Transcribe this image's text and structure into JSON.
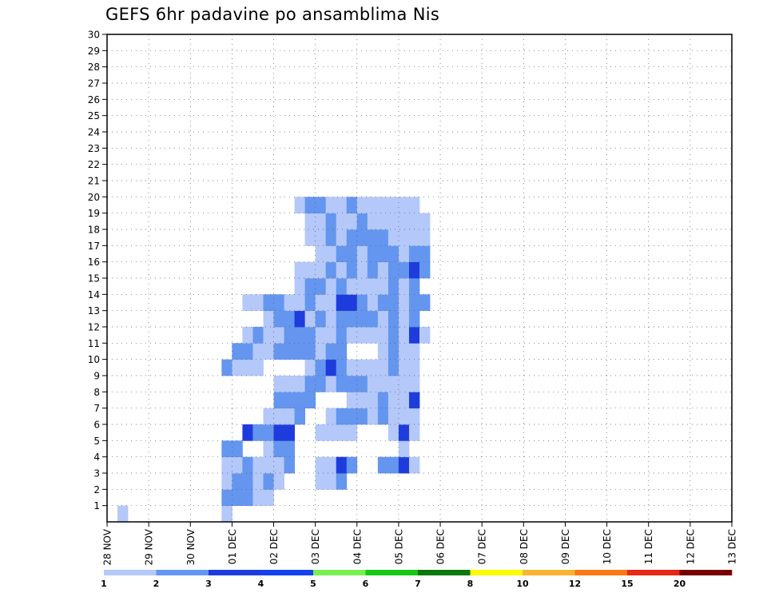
{
  "chart_data": {
    "type": "heatmap",
    "title": "GEFS 6hr padavine po ansamblima Nis",
    "xlabel": "",
    "ylabel": "",
    "x_ticks": [
      "28 NOV",
      "29 NOV",
      "30 NOV",
      "01 DEC",
      "02 DEC",
      "03 DEC",
      "04 DEC",
      "05 DEC",
      "06 DEC",
      "07 DEC",
      "08 DEC",
      "09 DEC",
      "10 DEC",
      "11 DEC",
      "12 DEC",
      "13 DEC"
    ],
    "y_ticks": [
      1,
      2,
      3,
      4,
      5,
      6,
      7,
      8,
      9,
      10,
      11,
      12,
      13,
      14,
      15,
      16,
      17,
      18,
      19,
      20,
      21,
      22,
      23,
      24,
      25,
      26,
      27,
      28,
      29,
      30
    ],
    "x_unit": "6-hour step from 28 NOV 00Z",
    "xlim": [
      0,
      60
    ],
    "ylim": [
      0,
      30
    ],
    "grid": true,
    "colorbar": {
      "levels": [
        "1",
        "2",
        "3",
        "4",
        "5",
        "6",
        "7",
        "8",
        "10",
        "12",
        "15",
        "20"
      ],
      "colors": [
        "#b4c8fa",
        "#6496f0",
        "#1e3cdc",
        "#1440f0",
        "#78f050",
        "#14c814",
        "#0a780a",
        "#fafa00",
        "#fab432",
        "#fa7814",
        "#e62814",
        "#780000"
      ]
    },
    "cells": [
      {
        "x": 2,
        "y": 1,
        "c": 0
      },
      {
        "x": 12,
        "y": 1,
        "c": 0
      },
      {
        "x": 12,
        "y": 2,
        "c": 1
      },
      {
        "x": 13,
        "y": 2,
        "c": 1
      },
      {
        "x": 14,
        "y": 2,
        "c": 1
      },
      {
        "x": 15,
        "y": 2,
        "c": 0
      },
      {
        "x": 16,
        "y": 2,
        "c": 0
      },
      {
        "x": 12,
        "y": 3,
        "c": 0
      },
      {
        "x": 13,
        "y": 3,
        "c": 1
      },
      {
        "x": 14,
        "y": 3,
        "c": 1
      },
      {
        "x": 15,
        "y": 3,
        "c": 0
      },
      {
        "x": 16,
        "y": 3,
        "c": 1
      },
      {
        "x": 17,
        "y": 3,
        "c": 0
      },
      {
        "x": 21,
        "y": 3,
        "c": 0
      },
      {
        "x": 22,
        "y": 3,
        "c": 0
      },
      {
        "x": 23,
        "y": 3,
        "c": 1
      },
      {
        "x": 12,
        "y": 4,
        "c": 0
      },
      {
        "x": 13,
        "y": 4,
        "c": 0
      },
      {
        "x": 14,
        "y": 4,
        "c": 1
      },
      {
        "x": 15,
        "y": 4,
        "c": 0
      },
      {
        "x": 16,
        "y": 4,
        "c": 0
      },
      {
        "x": 17,
        "y": 4,
        "c": 0
      },
      {
        "x": 18,
        "y": 4,
        "c": 1
      },
      {
        "x": 21,
        "y": 4,
        "c": 0
      },
      {
        "x": 22,
        "y": 4,
        "c": 0
      },
      {
        "x": 23,
        "y": 4,
        "c": 2
      },
      {
        "x": 24,
        "y": 4,
        "c": 1
      },
      {
        "x": 27,
        "y": 4,
        "c": 1
      },
      {
        "x": 28,
        "y": 4,
        "c": 1
      },
      {
        "x": 29,
        "y": 4,
        "c": 2
      },
      {
        "x": 30,
        "y": 4,
        "c": 0
      },
      {
        "x": 12,
        "y": 5,
        "c": 1
      },
      {
        "x": 13,
        "y": 5,
        "c": 1
      },
      {
        "x": 16,
        "y": 5,
        "c": 0
      },
      {
        "x": 17,
        "y": 5,
        "c": 1
      },
      {
        "x": 18,
        "y": 5,
        "c": 1
      },
      {
        "x": 29,
        "y": 5,
        "c": 0
      },
      {
        "x": 14,
        "y": 6,
        "c": 2
      },
      {
        "x": 15,
        "y": 6,
        "c": 1
      },
      {
        "x": 16,
        "y": 6,
        "c": 1
      },
      {
        "x": 17,
        "y": 6,
        "c": 2
      },
      {
        "x": 18,
        "y": 6,
        "c": 2
      },
      {
        "x": 21,
        "y": 6,
        "c": 0
      },
      {
        "x": 22,
        "y": 6,
        "c": 0
      },
      {
        "x": 23,
        "y": 6,
        "c": 0
      },
      {
        "x": 24,
        "y": 6,
        "c": 0
      },
      {
        "x": 28,
        "y": 6,
        "c": 0
      },
      {
        "x": 29,
        "y": 6,
        "c": 2
      },
      {
        "x": 30,
        "y": 6,
        "c": 0
      },
      {
        "x": 16,
        "y": 7,
        "c": 0
      },
      {
        "x": 17,
        "y": 7,
        "c": 0
      },
      {
        "x": 18,
        "y": 7,
        "c": 0
      },
      {
        "x": 19,
        "y": 7,
        "c": 1
      },
      {
        "x": 22,
        "y": 7,
        "c": 0
      },
      {
        "x": 23,
        "y": 7,
        "c": 1
      },
      {
        "x": 24,
        "y": 7,
        "c": 1
      },
      {
        "x": 25,
        "y": 7,
        "c": 1
      },
      {
        "x": 26,
        "y": 7,
        "c": 0
      },
      {
        "x": 27,
        "y": 7,
        "c": 1
      },
      {
        "x": 28,
        "y": 7,
        "c": 0
      },
      {
        "x": 29,
        "y": 7,
        "c": 0
      },
      {
        "x": 30,
        "y": 7,
        "c": 0
      },
      {
        "x": 17,
        "y": 8,
        "c": 1
      },
      {
        "x": 18,
        "y": 8,
        "c": 1
      },
      {
        "x": 19,
        "y": 8,
        "c": 1
      },
      {
        "x": 20,
        "y": 8,
        "c": 1
      },
      {
        "x": 24,
        "y": 8,
        "c": 0
      },
      {
        "x": 25,
        "y": 8,
        "c": 0
      },
      {
        "x": 26,
        "y": 8,
        "c": 0
      },
      {
        "x": 27,
        "y": 8,
        "c": 1
      },
      {
        "x": 28,
        "y": 8,
        "c": 0
      },
      {
        "x": 29,
        "y": 8,
        "c": 0
      },
      {
        "x": 30,
        "y": 8,
        "c": 2
      },
      {
        "x": 17,
        "y": 9,
        "c": 0
      },
      {
        "x": 18,
        "y": 9,
        "c": 0
      },
      {
        "x": 19,
        "y": 9,
        "c": 0
      },
      {
        "x": 20,
        "y": 9,
        "c": 1
      },
      {
        "x": 21,
        "y": 9,
        "c": 1
      },
      {
        "x": 22,
        "y": 9,
        "c": 0
      },
      {
        "x": 23,
        "y": 9,
        "c": 1
      },
      {
        "x": 24,
        "y": 9,
        "c": 1
      },
      {
        "x": 25,
        "y": 9,
        "c": 1
      },
      {
        "x": 26,
        "y": 9,
        "c": 0
      },
      {
        "x": 27,
        "y": 9,
        "c": 0
      },
      {
        "x": 28,
        "y": 9,
        "c": 0
      },
      {
        "x": 29,
        "y": 9,
        "c": 0
      },
      {
        "x": 30,
        "y": 9,
        "c": 0
      },
      {
        "x": 12,
        "y": 10,
        "c": 1
      },
      {
        "x": 13,
        "y": 10,
        "c": 0
      },
      {
        "x": 14,
        "y": 10,
        "c": 0
      },
      {
        "x": 15,
        "y": 10,
        "c": 0
      },
      {
        "x": 20,
        "y": 10,
        "c": 0
      },
      {
        "x": 21,
        "y": 10,
        "c": 1
      },
      {
        "x": 22,
        "y": 10,
        "c": 2
      },
      {
        "x": 23,
        "y": 10,
        "c": 1
      },
      {
        "x": 24,
        "y": 10,
        "c": 0
      },
      {
        "x": 25,
        "y": 10,
        "c": 0
      },
      {
        "x": 26,
        "y": 10,
        "c": 0
      },
      {
        "x": 27,
        "y": 10,
        "c": 0
      },
      {
        "x": 28,
        "y": 10,
        "c": 1
      },
      {
        "x": 29,
        "y": 10,
        "c": 0
      },
      {
        "x": 30,
        "y": 10,
        "c": 0
      },
      {
        "x": 13,
        "y": 11,
        "c": 1
      },
      {
        "x": 14,
        "y": 11,
        "c": 1
      },
      {
        "x": 15,
        "y": 11,
        "c": 0
      },
      {
        "x": 16,
        "y": 11,
        "c": 0
      },
      {
        "x": 17,
        "y": 11,
        "c": 1
      },
      {
        "x": 18,
        "y": 11,
        "c": 1
      },
      {
        "x": 19,
        "y": 11,
        "c": 1
      },
      {
        "x": 20,
        "y": 11,
        "c": 1
      },
      {
        "x": 21,
        "y": 11,
        "c": 0
      },
      {
        "x": 22,
        "y": 11,
        "c": 1
      },
      {
        "x": 23,
        "y": 11,
        "c": 1
      },
      {
        "x": 27,
        "y": 11,
        "c": 0
      },
      {
        "x": 28,
        "y": 11,
        "c": 1
      },
      {
        "x": 29,
        "y": 11,
        "c": 0
      },
      {
        "x": 30,
        "y": 11,
        "c": 0
      },
      {
        "x": 14,
        "y": 12,
        "c": 0
      },
      {
        "x": 15,
        "y": 12,
        "c": 1
      },
      {
        "x": 16,
        "y": 12,
        "c": 0
      },
      {
        "x": 17,
        "y": 12,
        "c": 0
      },
      {
        "x": 18,
        "y": 12,
        "c": 1
      },
      {
        "x": 19,
        "y": 12,
        "c": 1
      },
      {
        "x": 20,
        "y": 12,
        "c": 1
      },
      {
        "x": 21,
        "y": 12,
        "c": 0
      },
      {
        "x": 22,
        "y": 12,
        "c": 0
      },
      {
        "x": 23,
        "y": 12,
        "c": 1
      },
      {
        "x": 24,
        "y": 12,
        "c": 0
      },
      {
        "x": 25,
        "y": 12,
        "c": 0
      },
      {
        "x": 26,
        "y": 12,
        "c": 0
      },
      {
        "x": 27,
        "y": 12,
        "c": 0
      },
      {
        "x": 28,
        "y": 12,
        "c": 1
      },
      {
        "x": 29,
        "y": 12,
        "c": 0
      },
      {
        "x": 30,
        "y": 12,
        "c": 2
      },
      {
        "x": 31,
        "y": 12,
        "c": 0
      },
      {
        "x": 16,
        "y": 13,
        "c": 0
      },
      {
        "x": 17,
        "y": 13,
        "c": 1
      },
      {
        "x": 18,
        "y": 13,
        "c": 1
      },
      {
        "x": 19,
        "y": 13,
        "c": 2
      },
      {
        "x": 20,
        "y": 13,
        "c": 0
      },
      {
        "x": 21,
        "y": 13,
        "c": 1
      },
      {
        "x": 22,
        "y": 13,
        "c": 0
      },
      {
        "x": 23,
        "y": 13,
        "c": 1
      },
      {
        "x": 24,
        "y": 13,
        "c": 1
      },
      {
        "x": 25,
        "y": 13,
        "c": 1
      },
      {
        "x": 26,
        "y": 13,
        "c": 1
      },
      {
        "x": 27,
        "y": 13,
        "c": 0
      },
      {
        "x": 28,
        "y": 13,
        "c": 1
      },
      {
        "x": 29,
        "y": 13,
        "c": 0
      },
      {
        "x": 30,
        "y": 13,
        "c": 1
      },
      {
        "x": 14,
        "y": 14,
        "c": 0
      },
      {
        "x": 15,
        "y": 14,
        "c": 0
      },
      {
        "x": 16,
        "y": 14,
        "c": 1
      },
      {
        "x": 17,
        "y": 14,
        "c": 1
      },
      {
        "x": 18,
        "y": 14,
        "c": 0
      },
      {
        "x": 19,
        "y": 14,
        "c": 0
      },
      {
        "x": 20,
        "y": 14,
        "c": 1
      },
      {
        "x": 21,
        "y": 14,
        "c": 0
      },
      {
        "x": 22,
        "y": 14,
        "c": 0
      },
      {
        "x": 23,
        "y": 14,
        "c": 2
      },
      {
        "x": 24,
        "y": 14,
        "c": 2
      },
      {
        "x": 25,
        "y": 14,
        "c": 1
      },
      {
        "x": 26,
        "y": 14,
        "c": 0
      },
      {
        "x": 27,
        "y": 14,
        "c": 1
      },
      {
        "x": 28,
        "y": 14,
        "c": 1
      },
      {
        "x": 29,
        "y": 14,
        "c": 0
      },
      {
        "x": 30,
        "y": 14,
        "c": 1
      },
      {
        "x": 31,
        "y": 14,
        "c": 1
      },
      {
        "x": 19,
        "y": 15,
        "c": 0
      },
      {
        "x": 20,
        "y": 15,
        "c": 1
      },
      {
        "x": 21,
        "y": 15,
        "c": 1
      },
      {
        "x": 22,
        "y": 15,
        "c": 0
      },
      {
        "x": 23,
        "y": 15,
        "c": 1
      },
      {
        "x": 24,
        "y": 15,
        "c": 0
      },
      {
        "x": 25,
        "y": 15,
        "c": 0
      },
      {
        "x": 26,
        "y": 15,
        "c": 0
      },
      {
        "x": 27,
        "y": 15,
        "c": 0
      },
      {
        "x": 28,
        "y": 15,
        "c": 1
      },
      {
        "x": 29,
        "y": 15,
        "c": 0
      },
      {
        "x": 30,
        "y": 15,
        "c": 1
      },
      {
        "x": 19,
        "y": 16,
        "c": 0
      },
      {
        "x": 20,
        "y": 16,
        "c": 0
      },
      {
        "x": 21,
        "y": 16,
        "c": 0
      },
      {
        "x": 22,
        "y": 16,
        "c": 1
      },
      {
        "x": 23,
        "y": 16,
        "c": 0
      },
      {
        "x": 24,
        "y": 16,
        "c": 1
      },
      {
        "x": 25,
        "y": 16,
        "c": 0
      },
      {
        "x": 26,
        "y": 16,
        "c": 1
      },
      {
        "x": 27,
        "y": 16,
        "c": 0
      },
      {
        "x": 28,
        "y": 16,
        "c": 1
      },
      {
        "x": 29,
        "y": 16,
        "c": 1
      },
      {
        "x": 30,
        "y": 16,
        "c": 2
      },
      {
        "x": 31,
        "y": 16,
        "c": 1
      },
      {
        "x": 21,
        "y": 17,
        "c": 0
      },
      {
        "x": 22,
        "y": 17,
        "c": 0
      },
      {
        "x": 23,
        "y": 17,
        "c": 1
      },
      {
        "x": 24,
        "y": 17,
        "c": 1
      },
      {
        "x": 25,
        "y": 17,
        "c": 0
      },
      {
        "x": 26,
        "y": 17,
        "c": 1
      },
      {
        "x": 27,
        "y": 17,
        "c": 1
      },
      {
        "x": 28,
        "y": 17,
        "c": 1
      },
      {
        "x": 29,
        "y": 17,
        "c": 0
      },
      {
        "x": 30,
        "y": 17,
        "c": 1
      },
      {
        "x": 31,
        "y": 17,
        "c": 1
      },
      {
        "x": 20,
        "y": 18,
        "c": 0
      },
      {
        "x": 21,
        "y": 18,
        "c": 0
      },
      {
        "x": 22,
        "y": 18,
        "c": 1
      },
      {
        "x": 23,
        "y": 18,
        "c": 0
      },
      {
        "x": 24,
        "y": 18,
        "c": 1
      },
      {
        "x": 25,
        "y": 18,
        "c": 1
      },
      {
        "x": 26,
        "y": 18,
        "c": 1
      },
      {
        "x": 27,
        "y": 18,
        "c": 1
      },
      {
        "x": 28,
        "y": 18,
        "c": 0
      },
      {
        "x": 29,
        "y": 18,
        "c": 0
      },
      {
        "x": 30,
        "y": 18,
        "c": 0
      },
      {
        "x": 31,
        "y": 18,
        "c": 0
      },
      {
        "x": 20,
        "y": 19,
        "c": 0
      },
      {
        "x": 21,
        "y": 19,
        "c": 0
      },
      {
        "x": 22,
        "y": 19,
        "c": 1
      },
      {
        "x": 23,
        "y": 19,
        "c": 0
      },
      {
        "x": 24,
        "y": 19,
        "c": 0
      },
      {
        "x": 25,
        "y": 19,
        "c": 1
      },
      {
        "x": 26,
        "y": 19,
        "c": 0
      },
      {
        "x": 27,
        "y": 19,
        "c": 0
      },
      {
        "x": 28,
        "y": 19,
        "c": 0
      },
      {
        "x": 29,
        "y": 19,
        "c": 0
      },
      {
        "x": 30,
        "y": 19,
        "c": 0
      },
      {
        "x": 31,
        "y": 19,
        "c": 0
      },
      {
        "x": 19,
        "y": 20,
        "c": 0
      },
      {
        "x": 20,
        "y": 20,
        "c": 1
      },
      {
        "x": 21,
        "y": 20,
        "c": 1
      },
      {
        "x": 22,
        "y": 20,
        "c": 0
      },
      {
        "x": 23,
        "y": 20,
        "c": 0
      },
      {
        "x": 24,
        "y": 20,
        "c": 1
      },
      {
        "x": 25,
        "y": 20,
        "c": 0
      },
      {
        "x": 26,
        "y": 20,
        "c": 0
      },
      {
        "x": 27,
        "y": 20,
        "c": 0
      },
      {
        "x": 28,
        "y": 20,
        "c": 0
      },
      {
        "x": 29,
        "y": 20,
        "c": 0
      },
      {
        "x": 30,
        "y": 20,
        "c": 0
      }
    ]
  }
}
